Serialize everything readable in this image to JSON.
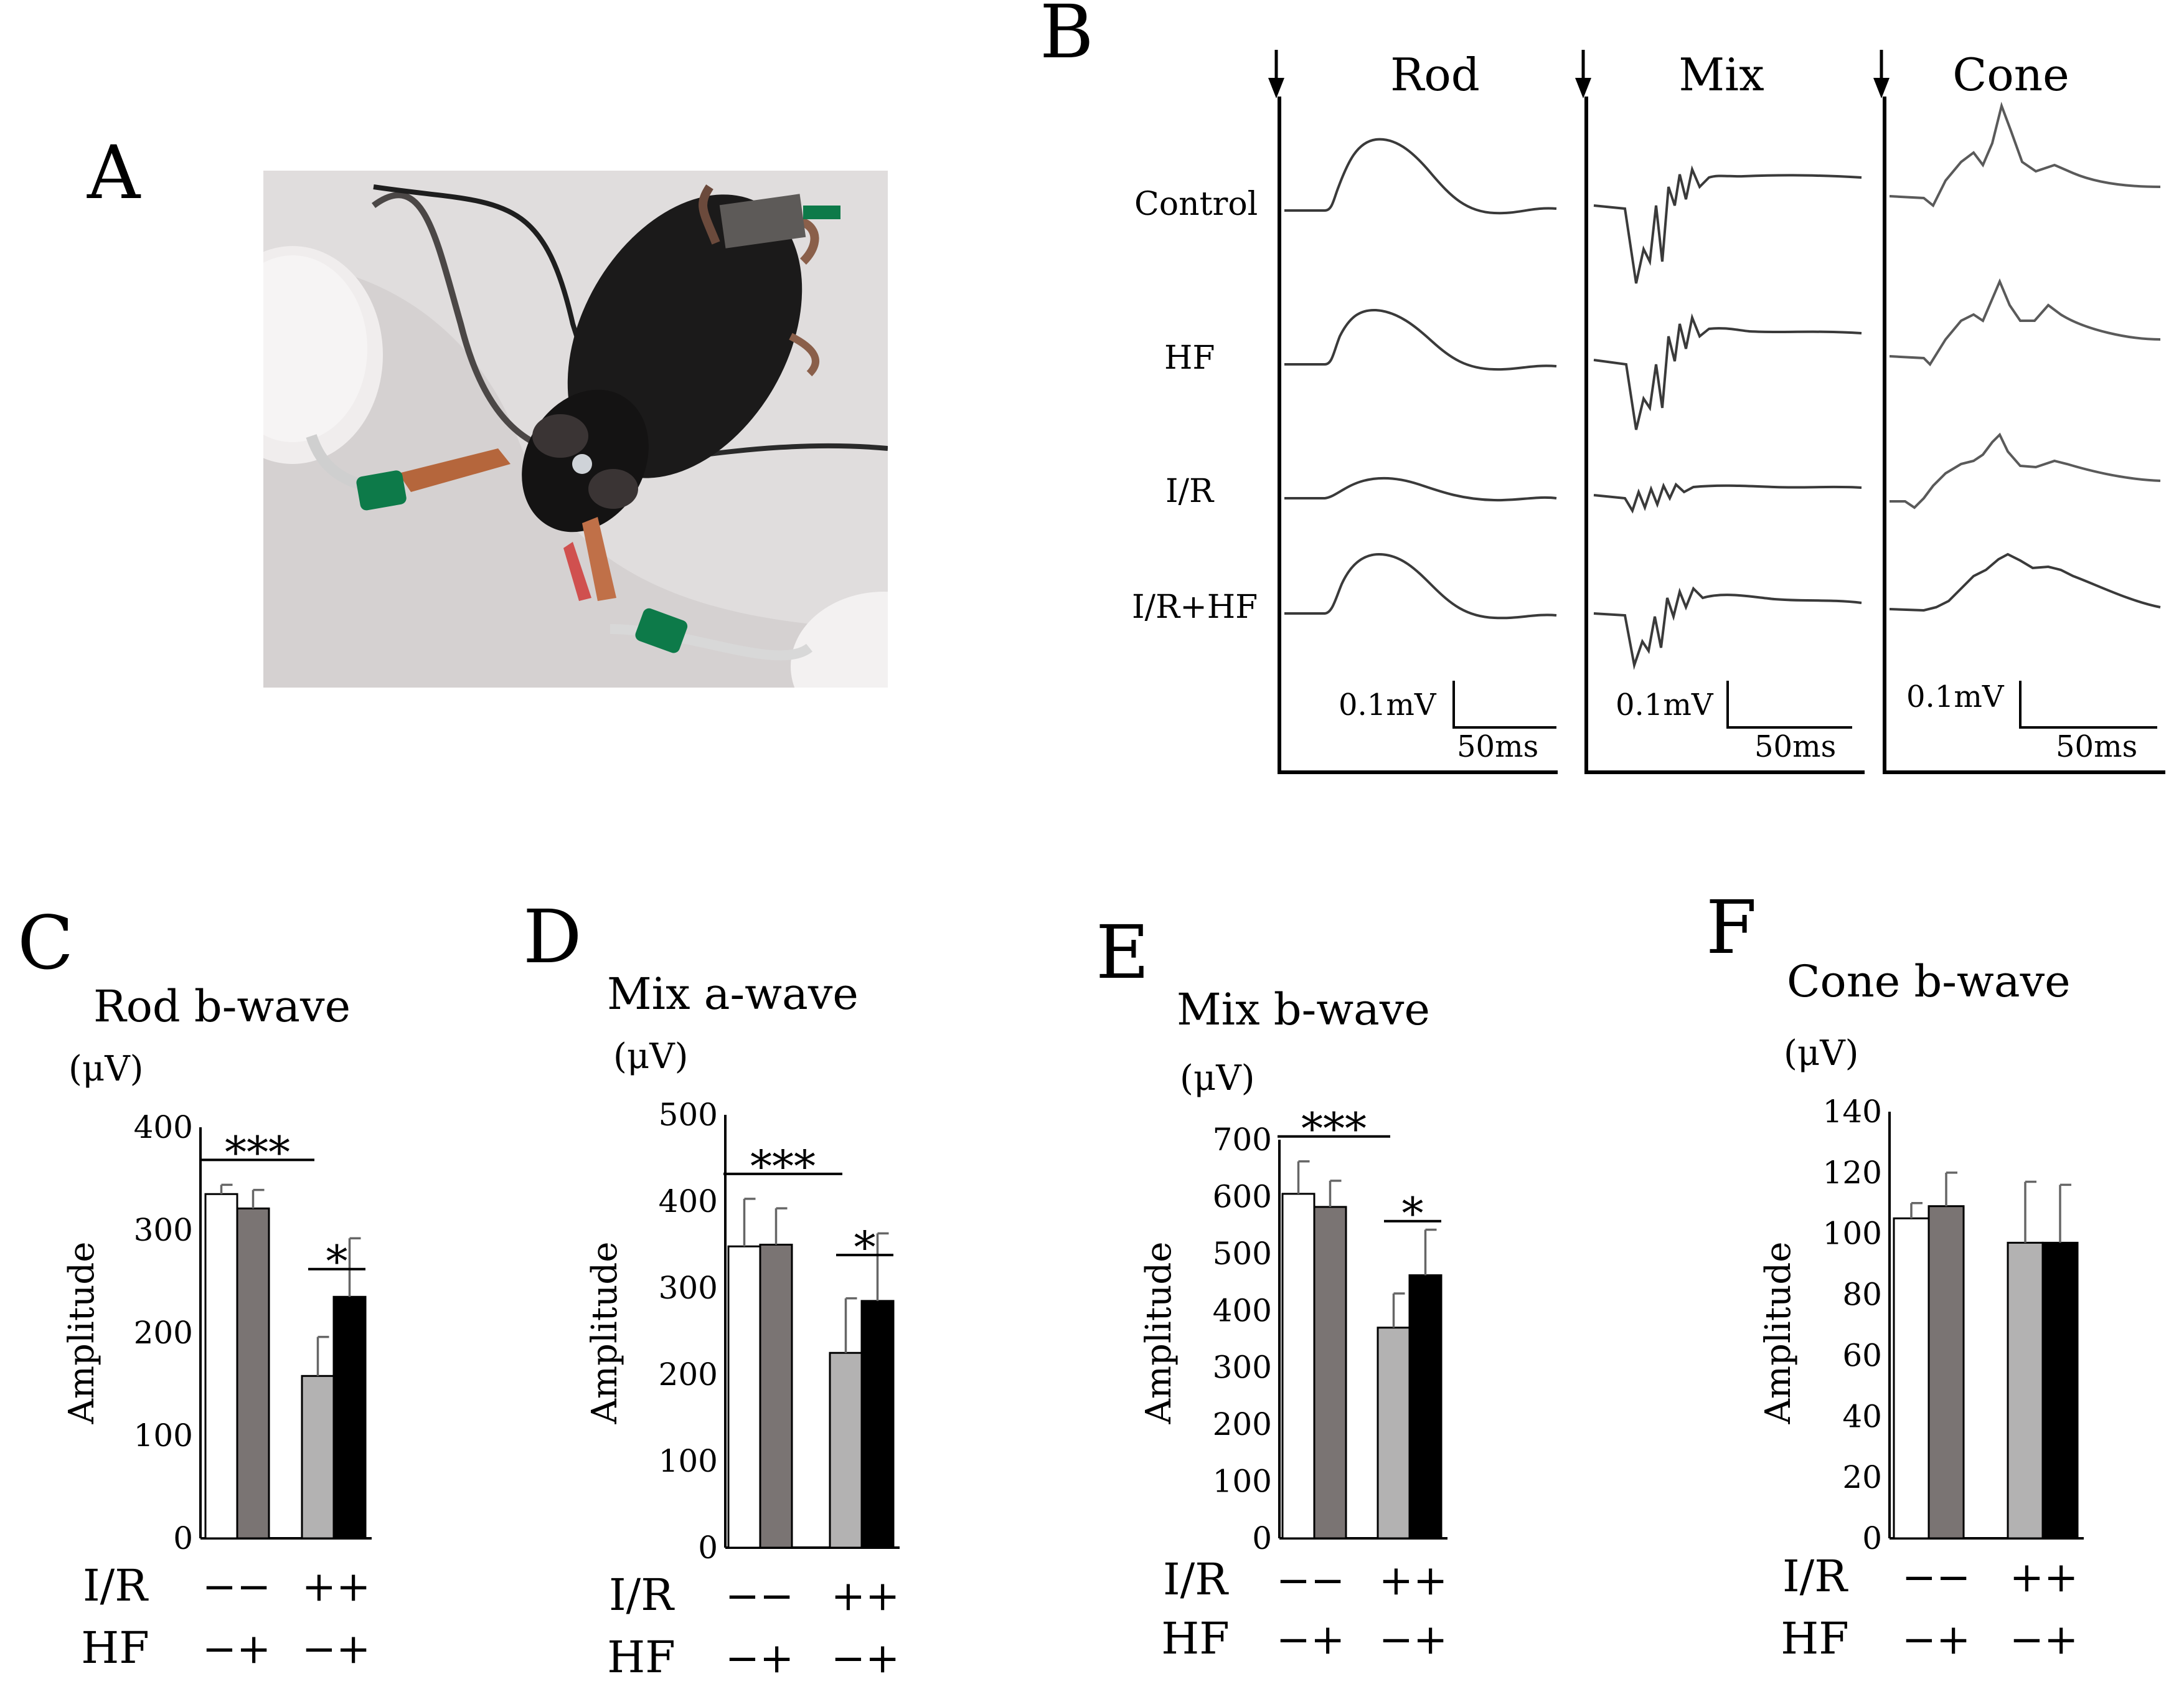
{
  "panels": {
    "A": {
      "letter": "A",
      "photo_icon": "mouse-erg-electrode-photo",
      "colors": {
        "background": "#d9d6d6",
        "mouse": "#1b1a1a",
        "clip": "#b5663c",
        "connector": "#0d7a49",
        "wire": "#1e1e1e"
      }
    },
    "B": {
      "letter": "B",
      "stimulus_icon": "arrow-down-icon",
      "columns": [
        {
          "title": "Rod"
        },
        {
          "title": "Mix"
        },
        {
          "title": "Cone"
        }
      ],
      "rows": [
        "Control",
        "HF",
        "I/R",
        "I/R+HF"
      ],
      "scalebar": {
        "voltage": "0.1mV",
        "time": "50ms"
      },
      "colors": {
        "trace": "#3a3a3a",
        "axis": "#000000"
      }
    }
  },
  "chart_data": [
    {
      "panel": "C",
      "type": "bar",
      "title": "Rod b-wave",
      "unit": "(μV)",
      "ylabel": "Amplitude",
      "ylim": [
        0,
        400
      ],
      "yticks": [
        "0",
        "100",
        "200",
        "300",
        "400"
      ],
      "x_rows": [
        {
          "label": "I/R",
          "values": [
            "--",
            "++"
          ]
        },
        {
          "label": "HF",
          "values": [
            "-+",
            "-+"
          ]
        }
      ],
      "series": [
        {
          "name": "Control",
          "value": 335,
          "error": 9,
          "color": "#ffffff"
        },
        {
          "name": "HF",
          "value": 321,
          "error": 18,
          "color": "#7a7473"
        },
        {
          "name": "I/R",
          "value": 158,
          "error": 38,
          "color": "#b3b2b2"
        },
        {
          "name": "I/R+HF",
          "value": 235,
          "error": 57,
          "color": "#000000"
        }
      ],
      "significance": [
        {
          "label": "***",
          "from": 0,
          "to": 2
        },
        {
          "label": "*",
          "from": 2,
          "to": 3
        }
      ]
    },
    {
      "panel": "D",
      "type": "bar",
      "title": "Mix a-wave",
      "unit": "(μV)",
      "ylabel": "Amplitude",
      "ylim": [
        0,
        500
      ],
      "yticks": [
        "0",
        "100",
        "200",
        "300",
        "400",
        "500"
      ],
      "x_rows": [
        {
          "label": "I/R",
          "values": [
            "--",
            "++"
          ]
        },
        {
          "label": "HF",
          "values": [
            "-+",
            "-+"
          ]
        }
      ],
      "series": [
        {
          "name": "Control",
          "value": 348,
          "error": 55,
          "color": "#ffffff"
        },
        {
          "name": "HF",
          "value": 350,
          "error": 42,
          "color": "#7a7473"
        },
        {
          "name": "I/R",
          "value": 225,
          "error": 63,
          "color": "#b3b2b2"
        },
        {
          "name": "I/R+HF",
          "value": 285,
          "error": 78,
          "color": "#000000"
        }
      ],
      "significance": [
        {
          "label": "***",
          "from": 0,
          "to": 2
        },
        {
          "label": "*",
          "from": 2,
          "to": 3
        }
      ]
    },
    {
      "panel": "E",
      "type": "bar",
      "title": "Mix b-wave",
      "unit": "(μV)",
      "ylabel": "Amplitude",
      "ylim": [
        0,
        700
      ],
      "yticks": [
        "0",
        "100",
        "200",
        "300",
        "400",
        "500",
        "600",
        "700"
      ],
      "x_rows": [
        {
          "label": "I/R",
          "values": [
            "--",
            "++"
          ]
        },
        {
          "label": "HF",
          "values": [
            "-+",
            "-+"
          ]
        }
      ],
      "series": [
        {
          "name": "Control",
          "value": 605,
          "error": 57,
          "color": "#ffffff"
        },
        {
          "name": "HF",
          "value": 582,
          "error": 46,
          "color": "#7a7473"
        },
        {
          "name": "I/R",
          "value": 370,
          "error": 60,
          "color": "#b3b2b2"
        },
        {
          "name": "I/R+HF",
          "value": 462,
          "error": 80,
          "color": "#000000"
        }
      ],
      "significance": [
        {
          "label": "***",
          "from": 0,
          "to": 2
        },
        {
          "label": "*",
          "from": 2,
          "to": 3
        }
      ]
    },
    {
      "panel": "F",
      "type": "bar",
      "title": "Cone b-wave",
      "unit": "(μV)",
      "ylabel": "Amplitude",
      "ylim": [
        0,
        140
      ],
      "yticks": [
        "0",
        "20",
        "40",
        "60",
        "80",
        "100",
        "120",
        "140"
      ],
      "x_rows": [
        {
          "label": "I/R",
          "values": [
            "--",
            "++"
          ]
        },
        {
          "label": "HF",
          "values": [
            "-+",
            "-+"
          ]
        }
      ],
      "series": [
        {
          "name": "Control",
          "value": 105,
          "error": 5,
          "color": "#ffffff"
        },
        {
          "name": "HF",
          "value": 109,
          "error": 11,
          "color": "#7a7473"
        },
        {
          "name": "I/R",
          "value": 97,
          "error": 20,
          "color": "#b3b2b2"
        },
        {
          "name": "I/R+HF",
          "value": 97,
          "error": 19,
          "color": "#000000"
        }
      ],
      "significance": []
    }
  ]
}
